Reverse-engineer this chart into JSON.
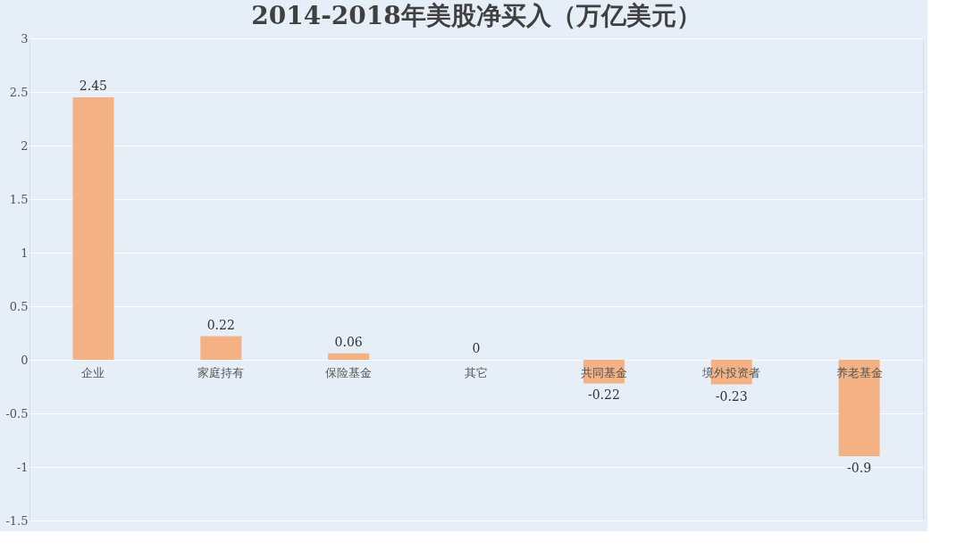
{
  "chart_data": {
    "type": "bar",
    "title": "2014-2018年美股净买入（万亿美元）",
    "categories": [
      "企业",
      "家庭持有",
      "保险基金",
      "其它",
      "共同基金",
      "境外投资者",
      "养老基金"
    ],
    "values": [
      2.45,
      0.22,
      0.06,
      0,
      -0.22,
      -0.23,
      -0.9
    ],
    "color": "#f4b183",
    "ylim": [
      -1.5,
      3
    ],
    "yticks": [
      -1.5,
      -1,
      -0.5,
      0,
      0.5,
      1,
      1.5,
      2,
      2.5,
      3
    ],
    "grid": "y",
    "data_labels": true
  }
}
